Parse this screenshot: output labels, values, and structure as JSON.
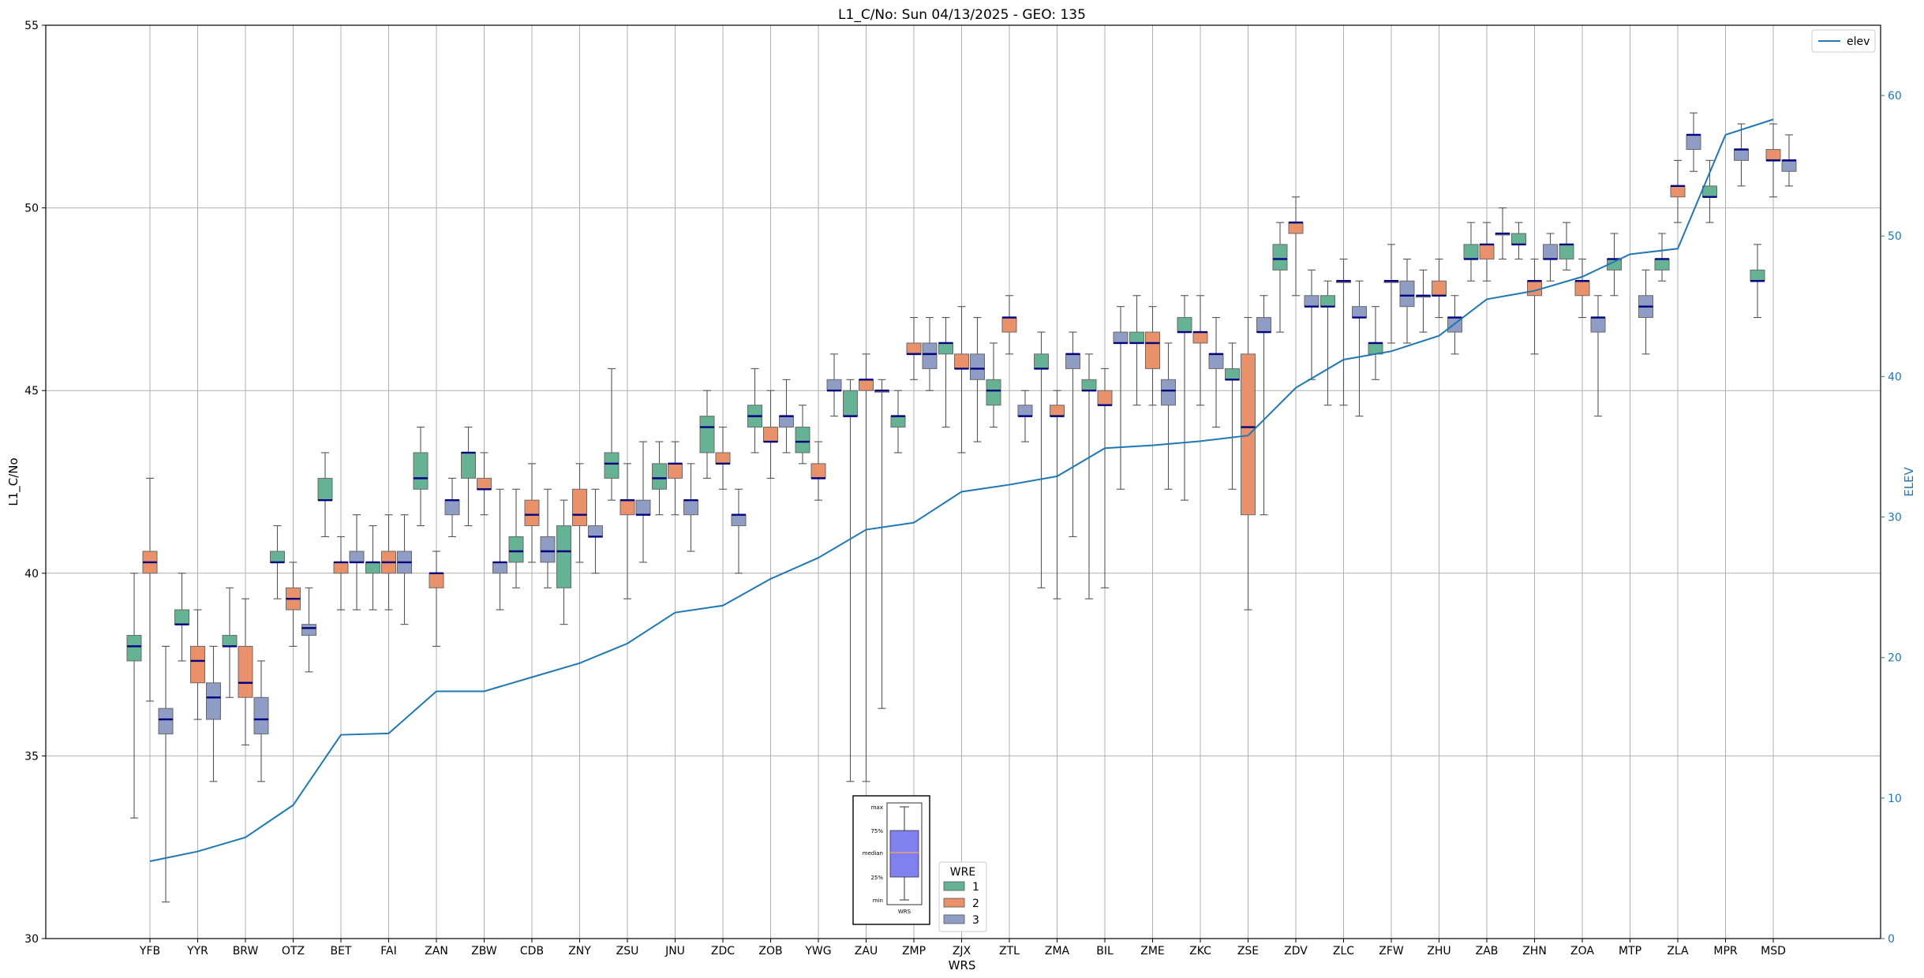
{
  "chart_data": {
    "type": "box",
    "title": "L1_C/No: Sun 04/13/2025 - GEO: 135",
    "xlabel": "WRS",
    "ylabel": "L1_C/No",
    "y2label": "ELEV",
    "ylim": [
      30,
      55
    ],
    "y2lim": [
      0,
      65
    ],
    "yticks": [
      30,
      35,
      40,
      45,
      50,
      55
    ],
    "y2ticks": [
      0,
      10,
      20,
      30,
      40,
      50,
      60
    ],
    "grid": true,
    "categories": [
      "YFB",
      "YYR",
      "BRW",
      "OTZ",
      "BET",
      "FAI",
      "ZAN",
      "ZBW",
      "CDB",
      "ZNY",
      "ZSU",
      "JNU",
      "ZDC",
      "ZOB",
      "YWG",
      "ZAU",
      "ZMP",
      "ZJX",
      "ZTL",
      "ZMA",
      "BIL",
      "ZME",
      "ZKC",
      "ZSE",
      "ZDV",
      "ZLC",
      "ZFW",
      "ZHU",
      "ZAB",
      "ZHN",
      "ZOA",
      "MTP",
      "ZLA",
      "MPR",
      "MSD"
    ],
    "wre_colors": {
      "1": "#66b294",
      "2": "#e8916a",
      "3": "#8f9cc4"
    },
    "boxes": [
      {
        "station": "YFB",
        "wre": "1",
        "min": 33.3,
        "q1": 37.6,
        "median": 38.0,
        "q3": 38.3,
        "max": 40.0
      },
      {
        "station": "YFB",
        "wre": "2",
        "min": 36.5,
        "q1": 40.0,
        "median": 40.3,
        "q3": 40.6,
        "max": 42.6
      },
      {
        "station": "YFB",
        "wre": "3",
        "min": 31.0,
        "q1": 35.6,
        "median": 36.0,
        "q3": 36.3,
        "max": 38.0
      },
      {
        "station": "YYR",
        "wre": "1",
        "min": 37.6,
        "q1": 38.6,
        "median": 38.6,
        "q3": 39.0,
        "max": 40.0
      },
      {
        "station": "YYR",
        "wre": "2",
        "min": 36.0,
        "q1": 37.0,
        "median": 37.6,
        "q3": 38.0,
        "max": 39.0
      },
      {
        "station": "YYR",
        "wre": "3",
        "min": 34.3,
        "q1": 36.0,
        "median": 36.6,
        "q3": 37.0,
        "max": 38.0
      },
      {
        "station": "BRW",
        "wre": "1",
        "min": 36.6,
        "q1": 38.0,
        "median": 38.0,
        "q3": 38.3,
        "max": 39.6
      },
      {
        "station": "BRW",
        "wre": "2",
        "min": 35.3,
        "q1": 36.6,
        "median": 37.0,
        "q3": 38.0,
        "max": 39.3
      },
      {
        "station": "BRW",
        "wre": "3",
        "min": 34.3,
        "q1": 35.6,
        "median": 36.0,
        "q3": 36.6,
        "max": 37.6
      },
      {
        "station": "OTZ",
        "wre": "1",
        "min": 39.3,
        "q1": 40.3,
        "median": 40.3,
        "q3": 40.6,
        "max": 41.3
      },
      {
        "station": "OTZ",
        "wre": "2",
        "min": 38.0,
        "q1": 39.0,
        "median": 39.3,
        "q3": 39.6,
        "max": 40.3
      },
      {
        "station": "OTZ",
        "wre": "3",
        "min": 37.3,
        "q1": 38.3,
        "median": 38.5,
        "q3": 38.6,
        "max": 39.6
      },
      {
        "station": "BET",
        "wre": "1",
        "min": 41.0,
        "q1": 42.0,
        "median": 42.0,
        "q3": 42.6,
        "max": 43.3
      },
      {
        "station": "BET",
        "wre": "2",
        "min": 39.0,
        "q1": 40.0,
        "median": 40.3,
        "q3": 40.3,
        "max": 41.0
      },
      {
        "station": "BET",
        "wre": "3",
        "min": 39.0,
        "q1": 40.3,
        "median": 40.3,
        "q3": 40.6,
        "max": 41.6
      },
      {
        "station": "FAI",
        "wre": "1",
        "min": 39.0,
        "q1": 40.0,
        "median": 40.3,
        "q3": 40.3,
        "max": 41.3
      },
      {
        "station": "FAI",
        "wre": "2",
        "min": 39.0,
        "q1": 40.0,
        "median": 40.3,
        "q3": 40.6,
        "max": 41.6
      },
      {
        "station": "FAI",
        "wre": "3",
        "min": 38.6,
        "q1": 40.0,
        "median": 40.3,
        "q3": 40.6,
        "max": 41.6
      },
      {
        "station": "ZAN",
        "wre": "1",
        "min": 41.3,
        "q1": 42.3,
        "median": 42.6,
        "q3": 43.3,
        "max": 44.0
      },
      {
        "station": "ZAN",
        "wre": "2",
        "min": 38.0,
        "q1": 39.6,
        "median": 40.0,
        "q3": 40.0,
        "max": 40.6
      },
      {
        "station": "ZAN",
        "wre": "3",
        "min": 41.0,
        "q1": 41.6,
        "median": 42.0,
        "q3": 42.0,
        "max": 42.6
      },
      {
        "station": "ZBW",
        "wre": "1",
        "min": 41.3,
        "q1": 42.6,
        "median": 43.3,
        "q3": 43.3,
        "max": 44.0
      },
      {
        "station": "ZBW",
        "wre": "2",
        "min": 41.6,
        "q1": 42.3,
        "median": 42.3,
        "q3": 42.6,
        "max": 43.3
      },
      {
        "station": "ZBW",
        "wre": "3",
        "min": 39.0,
        "q1": 40.0,
        "median": 40.3,
        "q3": 40.3,
        "max": 42.3
      },
      {
        "station": "CDB",
        "wre": "1",
        "min": 39.6,
        "q1": 40.3,
        "median": 40.6,
        "q3": 41.0,
        "max": 42.3
      },
      {
        "station": "CDB",
        "wre": "2",
        "min": 40.3,
        "q1": 41.3,
        "median": 41.6,
        "q3": 42.0,
        "max": 43.0
      },
      {
        "station": "CDB",
        "wre": "3",
        "min": 39.6,
        "q1": 40.3,
        "median": 40.6,
        "q3": 41.0,
        "max": 42.3
      },
      {
        "station": "ZNY",
        "wre": "1",
        "min": 38.6,
        "q1": 39.6,
        "median": 40.6,
        "q3": 41.3,
        "max": 42.0
      },
      {
        "station": "ZNY",
        "wre": "2",
        "min": 40.3,
        "q1": 41.3,
        "median": 41.6,
        "q3": 42.3,
        "max": 43.0
      },
      {
        "station": "ZNY",
        "wre": "3",
        "min": 40.0,
        "q1": 41.0,
        "median": 41.0,
        "q3": 41.3,
        "max": 42.3
      },
      {
        "station": "ZSU",
        "wre": "1",
        "min": 42.0,
        "q1": 42.6,
        "median": 43.0,
        "q3": 43.3,
        "max": 45.6
      },
      {
        "station": "ZSU",
        "wre": "2",
        "min": 39.3,
        "q1": 41.6,
        "median": 42.0,
        "q3": 42.0,
        "max": 43.0
      },
      {
        "station": "ZSU",
        "wre": "3",
        "min": 40.3,
        "q1": 41.6,
        "median": 41.6,
        "q3": 42.0,
        "max": 43.6
      },
      {
        "station": "JNU",
        "wre": "1",
        "min": 41.6,
        "q1": 42.3,
        "median": 42.6,
        "q3": 43.0,
        "max": 43.6
      },
      {
        "station": "JNU",
        "wre": "2",
        "min": 41.6,
        "q1": 42.6,
        "median": 43.0,
        "q3": 43.0,
        "max": 43.6
      },
      {
        "station": "JNU",
        "wre": "3",
        "min": 40.6,
        "q1": 41.6,
        "median": 42.0,
        "q3": 42.0,
        "max": 43.0
      },
      {
        "station": "ZDC",
        "wre": "1",
        "min": 42.6,
        "q1": 43.3,
        "median": 44.0,
        "q3": 44.3,
        "max": 45.0
      },
      {
        "station": "ZDC",
        "wre": "2",
        "min": 42.3,
        "q1": 43.0,
        "median": 43.0,
        "q3": 43.3,
        "max": 44.0
      },
      {
        "station": "ZDC",
        "wre": "3",
        "min": 40.0,
        "q1": 41.3,
        "median": 41.6,
        "q3": 41.6,
        "max": 42.3
      },
      {
        "station": "ZOB",
        "wre": "1",
        "min": 43.3,
        "q1": 44.0,
        "median": 44.3,
        "q3": 44.6,
        "max": 45.6
      },
      {
        "station": "ZOB",
        "wre": "2",
        "min": 42.6,
        "q1": 43.6,
        "median": 43.6,
        "q3": 44.0,
        "max": 45.0
      },
      {
        "station": "ZOB",
        "wre": "3",
        "min": 43.3,
        "q1": 44.0,
        "median": 44.3,
        "q3": 44.3,
        "max": 45.3
      },
      {
        "station": "YWG",
        "wre": "1",
        "min": 43.0,
        "q1": 43.3,
        "median": 43.6,
        "q3": 44.0,
        "max": 44.6
      },
      {
        "station": "YWG",
        "wre": "2",
        "min": 42.0,
        "q1": 42.6,
        "median": 42.6,
        "q3": 43.0,
        "max": 43.6
      },
      {
        "station": "YWG",
        "wre": "3",
        "min": 44.3,
        "q1": 45.0,
        "median": 45.0,
        "q3": 45.3,
        "max": 46.0
      },
      {
        "station": "ZAU",
        "wre": "1",
        "min": 34.3,
        "q1": 44.3,
        "median": 44.3,
        "q3": 45.0,
        "max": 45.3
      },
      {
        "station": "ZAU",
        "wre": "2",
        "min": 34.3,
        "q1": 45.0,
        "median": 45.3,
        "q3": 45.3,
        "max": 46.0
      },
      {
        "station": "ZAU",
        "wre": "3",
        "min": 36.3,
        "q1": 45.0,
        "median": 45.0,
        "q3": 45.0,
        "max": 45.3
      },
      {
        "station": "ZMP",
        "wre": "1",
        "min": 43.3,
        "q1": 44.0,
        "median": 44.3,
        "q3": 44.3,
        "max": 45.0
      },
      {
        "station": "ZMP",
        "wre": "2",
        "min": 45.3,
        "q1": 46.0,
        "median": 46.0,
        "q3": 46.3,
        "max": 47.0
      },
      {
        "station": "ZMP",
        "wre": "3",
        "min": 45.0,
        "q1": 45.6,
        "median": 46.0,
        "q3": 46.3,
        "max": 47.0
      },
      {
        "station": "ZJX",
        "wre": "1",
        "min": 44.0,
        "q1": 46.0,
        "median": 46.3,
        "q3": 46.3,
        "max": 47.0
      },
      {
        "station": "ZJX",
        "wre": "2",
        "min": 43.3,
        "q1": 45.6,
        "median": 45.6,
        "q3": 46.0,
        "max": 47.3
      },
      {
        "station": "ZJX",
        "wre": "3",
        "min": 43.6,
        "q1": 45.3,
        "median": 45.6,
        "q3": 46.0,
        "max": 47.0
      },
      {
        "station": "ZTL",
        "wre": "1",
        "min": 44.0,
        "q1": 44.6,
        "median": 45.0,
        "q3": 45.3,
        "max": 46.3
      },
      {
        "station": "ZTL",
        "wre": "2",
        "min": 46.0,
        "q1": 46.6,
        "median": 47.0,
        "q3": 47.0,
        "max": 47.6
      },
      {
        "station": "ZTL",
        "wre": "3",
        "min": 43.6,
        "q1": 44.3,
        "median": 44.3,
        "q3": 44.6,
        "max": 45.0
      },
      {
        "station": "ZMA",
        "wre": "1",
        "min": 39.6,
        "q1": 45.6,
        "median": 45.6,
        "q3": 46.0,
        "max": 46.6
      },
      {
        "station": "ZMA",
        "wre": "2",
        "min": 39.3,
        "q1": 44.3,
        "median": 44.3,
        "q3": 44.6,
        "max": 45.0
      },
      {
        "station": "ZMA",
        "wre": "3",
        "min": 41.0,
        "q1": 45.6,
        "median": 46.0,
        "q3": 46.0,
        "max": 46.6
      },
      {
        "station": "BIL",
        "wre": "1",
        "min": 39.3,
        "q1": 45.0,
        "median": 45.0,
        "q3": 45.3,
        "max": 46.0
      },
      {
        "station": "BIL",
        "wre": "2",
        "min": 39.6,
        "q1": 44.6,
        "median": 44.6,
        "q3": 45.0,
        "max": 45.6
      },
      {
        "station": "BIL",
        "wre": "3",
        "min": 42.3,
        "q1": 46.3,
        "median": 46.3,
        "q3": 46.6,
        "max": 47.3
      },
      {
        "station": "ZME",
        "wre": "1",
        "min": 44.6,
        "q1": 46.3,
        "median": 46.3,
        "q3": 46.6,
        "max": 47.6
      },
      {
        "station": "ZME",
        "wre": "2",
        "min": 44.6,
        "q1": 45.6,
        "median": 46.3,
        "q3": 46.6,
        "max": 47.3
      },
      {
        "station": "ZME",
        "wre": "3",
        "min": 42.3,
        "q1": 44.6,
        "median": 45.0,
        "q3": 45.3,
        "max": 46.3
      },
      {
        "station": "ZKC",
        "wre": "1",
        "min": 42.0,
        "q1": 46.6,
        "median": 46.6,
        "q3": 47.0,
        "max": 47.6
      },
      {
        "station": "ZKC",
        "wre": "2",
        "min": 44.6,
        "q1": 46.3,
        "median": 46.6,
        "q3": 46.6,
        "max": 47.6
      },
      {
        "station": "ZKC",
        "wre": "3",
        "min": 44.0,
        "q1": 45.6,
        "median": 46.0,
        "q3": 46.0,
        "max": 47.0
      },
      {
        "station": "ZSE",
        "wre": "1",
        "min": 42.3,
        "q1": 45.3,
        "median": 45.3,
        "q3": 45.6,
        "max": 46.3
      },
      {
        "station": "ZSE",
        "wre": "2",
        "min": 39.0,
        "q1": 41.6,
        "median": 44.0,
        "q3": 46.0,
        "max": 47.0
      },
      {
        "station": "ZSE",
        "wre": "3",
        "min": 41.6,
        "q1": 46.6,
        "median": 46.6,
        "q3": 47.0,
        "max": 47.6
      },
      {
        "station": "ZDV",
        "wre": "1",
        "min": 46.6,
        "q1": 48.3,
        "median": 48.6,
        "q3": 49.0,
        "max": 49.6
      },
      {
        "station": "ZDV",
        "wre": "2",
        "min": 47.6,
        "q1": 49.3,
        "median": 49.6,
        "q3": 49.6,
        "max": 50.3
      },
      {
        "station": "ZDV",
        "wre": "3",
        "min": 45.3,
        "q1": 47.3,
        "median": 47.3,
        "q3": 47.6,
        "max": 48.3
      },
      {
        "station": "ZLC",
        "wre": "1",
        "min": 44.6,
        "q1": 47.3,
        "median": 47.3,
        "q3": 47.6,
        "max": 48.0
      },
      {
        "station": "ZLC",
        "wre": "2",
        "min": 44.6,
        "q1": 48.0,
        "median": 48.0,
        "q3": 48.0,
        "max": 48.6
      },
      {
        "station": "ZLC",
        "wre": "3",
        "min": 44.3,
        "q1": 47.0,
        "median": 47.0,
        "q3": 47.3,
        "max": 48.0
      },
      {
        "station": "ZFW",
        "wre": "1",
        "min": 45.3,
        "q1": 46.0,
        "median": 46.3,
        "q3": 46.3,
        "max": 47.3
      },
      {
        "station": "ZFW",
        "wre": "2",
        "min": 46.3,
        "q1": 48.0,
        "median": 48.0,
        "q3": 48.0,
        "max": 49.0
      },
      {
        "station": "ZFW",
        "wre": "3",
        "min": 46.3,
        "q1": 47.3,
        "median": 47.6,
        "q3": 48.0,
        "max": 48.6
      },
      {
        "station": "ZHU",
        "wre": "1",
        "min": 46.6,
        "q1": 47.6,
        "median": 47.6,
        "q3": 47.6,
        "max": 48.3
      },
      {
        "station": "ZHU",
        "wre": "2",
        "min": 47.0,
        "q1": 47.6,
        "median": 47.6,
        "q3": 48.0,
        "max": 48.6
      },
      {
        "station": "ZHU",
        "wre": "3",
        "min": 46.0,
        "q1": 46.6,
        "median": 47.0,
        "q3": 47.0,
        "max": 47.6
      },
      {
        "station": "ZAB",
        "wre": "1",
        "min": 48.0,
        "q1": 48.6,
        "median": 48.6,
        "q3": 49.0,
        "max": 49.6
      },
      {
        "station": "ZAB",
        "wre": "2",
        "min": 48.0,
        "q1": 48.6,
        "median": 49.0,
        "q3": 49.0,
        "max": 49.6
      },
      {
        "station": "ZAB",
        "wre": "3",
        "min": 48.6,
        "q1": 49.3,
        "median": 49.3,
        "q3": 49.3,
        "max": 50.0
      },
      {
        "station": "ZHN",
        "wre": "1",
        "min": 48.6,
        "q1": 49.0,
        "median": 49.0,
        "q3": 49.3,
        "max": 49.6
      },
      {
        "station": "ZHN",
        "wre": "2",
        "min": 46.0,
        "q1": 47.6,
        "median": 48.0,
        "q3": 48.0,
        "max": 48.6
      },
      {
        "station": "ZHN",
        "wre": "3",
        "min": 48.0,
        "q1": 48.6,
        "median": 48.6,
        "q3": 49.0,
        "max": 49.3
      },
      {
        "station": "ZOA",
        "wre": "1",
        "min": 48.3,
        "q1": 48.6,
        "median": 49.0,
        "q3": 49.0,
        "max": 49.6
      },
      {
        "station": "ZOA",
        "wre": "2",
        "min": 47.0,
        "q1": 47.6,
        "median": 48.0,
        "q3": 48.0,
        "max": 48.6
      },
      {
        "station": "ZOA",
        "wre": "3",
        "min": 44.3,
        "q1": 46.6,
        "median": 47.0,
        "q3": 47.0,
        "max": 47.6
      },
      {
        "station": "MTP",
        "wre": "1",
        "min": 47.6,
        "q1": 48.3,
        "median": 48.6,
        "q3": 48.6,
        "max": 49.3
      },
      {
        "station": "MTP",
        "wre": "3",
        "min": 46.0,
        "q1": 47.0,
        "median": 47.3,
        "q3": 47.6,
        "max": 48.3
      },
      {
        "station": "ZLA",
        "wre": "1",
        "min": 48.0,
        "q1": 48.3,
        "median": 48.6,
        "q3": 48.6,
        "max": 49.3
      },
      {
        "station": "ZLA",
        "wre": "2",
        "min": 49.6,
        "q1": 50.3,
        "median": 50.6,
        "q3": 50.6,
        "max": 51.3
      },
      {
        "station": "ZLA",
        "wre": "3",
        "min": 51.0,
        "q1": 51.6,
        "median": 52.0,
        "q3": 52.0,
        "max": 52.6
      },
      {
        "station": "MPR",
        "wre": "1",
        "min": 49.6,
        "q1": 50.3,
        "median": 50.3,
        "q3": 50.6,
        "max": 51.3
      },
      {
        "station": "MPR",
        "wre": "3",
        "min": 50.6,
        "q1": 51.3,
        "median": 51.6,
        "q3": 51.6,
        "max": 52.3
      },
      {
        "station": "MSD",
        "wre": "1",
        "min": 47.0,
        "q1": 48.0,
        "median": 48.0,
        "q3": 48.3,
        "max": 49.0
      },
      {
        "station": "MSD",
        "wre": "2",
        "min": 50.3,
        "q1": 51.3,
        "median": 51.3,
        "q3": 51.6,
        "max": 52.3
      },
      {
        "station": "MSD",
        "wre": "3",
        "min": 50.6,
        "q1": 51.0,
        "median": 51.3,
        "q3": 51.3,
        "max": 52.0
      }
    ],
    "elev_series": {
      "name": "elev",
      "color": "#1f77b4",
      "values": [
        5.5,
        6.2,
        7.2,
        9.5,
        14.5,
        14.6,
        17.6,
        17.6,
        18.6,
        19.6,
        21.0,
        23.2,
        23.7,
        25.6,
        27.1,
        29.1,
        29.6,
        31.8,
        32.3,
        32.9,
        34.9,
        35.1,
        35.4,
        35.8,
        39.2,
        41.2,
        41.8,
        42.9,
        45.5,
        46.1,
        47.1,
        48.7,
        49.1,
        57.2,
        58.3
      ]
    },
    "legend_top": {
      "placement": "top-right",
      "entries": [
        "elev"
      ]
    },
    "legend_wre": {
      "title": "WRE",
      "placement": "bottom-center",
      "entries": [
        "1",
        "2",
        "3"
      ]
    },
    "inset": {
      "placement": "bottom-center",
      "labels": [
        "max",
        "75%",
        "median",
        "25%",
        "min"
      ],
      "xlabel": "WRS",
      "box_color": "#8080f0",
      "median_color": "#e8a070"
    }
  }
}
